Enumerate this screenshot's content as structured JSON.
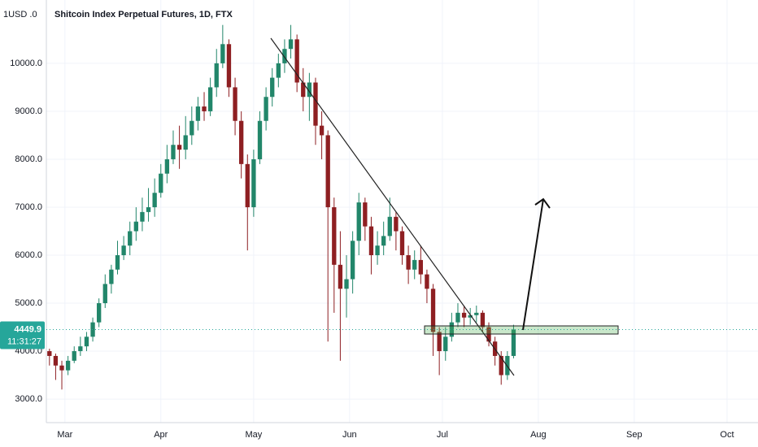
{
  "chart_data": {
    "type": "candlestick",
    "title": "Shitcoin Index Perpetual Futures, 1D, FTX",
    "currency_label": "1USD .0",
    "x": [
      0,
      2,
      4,
      6,
      8,
      10,
      12,
      14,
      16,
      18,
      20,
      22,
      24,
      26,
      28,
      30,
      32,
      34,
      36,
      38,
      40,
      42,
      44,
      46,
      48,
      50,
      52,
      54,
      56,
      58,
      60,
      62,
      64,
      66,
      68,
      70,
      72,
      74,
      76,
      78,
      80,
      82,
      84,
      86,
      88,
      90,
      92,
      94,
      96,
      98,
      100,
      102,
      104,
      106,
      108,
      110,
      112,
      114,
      116,
      118,
      120,
      122,
      124,
      126,
      128,
      130,
      132,
      134,
      136,
      138,
      140,
      142,
      144,
      146,
      148,
      150
    ],
    "open": [
      4000,
      3900,
      3700,
      3600,
      3800,
      4000,
      4100,
      4300,
      4600,
      5000,
      5400,
      5700,
      6000,
      6200,
      6500,
      6700,
      6900,
      7000,
      7300,
      7700,
      8000,
      8300,
      8200,
      8500,
      8800,
      9100,
      9000,
      9500,
      10000,
      10400,
      9500,
      8800,
      7900,
      7000,
      8000,
      8800,
      9300,
      9700,
      10000,
      10300,
      10500,
      9600,
      9300,
      9600,
      8700,
      8500,
      7000,
      5800,
      5300,
      5500,
      6300,
      7100,
      6600,
      6000,
      6200,
      6400,
      6800,
      6500,
      6000,
      5700,
      5900,
      5600,
      5300,
      4400,
      4000,
      4300,
      4600,
      4800,
      4700,
      4750,
      4800,
      4500,
      4200,
      3900,
      3500,
      3900
    ],
    "high": [
      4050,
      3950,
      3800,
      3900,
      4100,
      4300,
      4400,
      4700,
      5100,
      5600,
      5800,
      6300,
      6400,
      6700,
      7000,
      7200,
      7400,
      7600,
      7900,
      8300,
      8600,
      8700,
      8900,
      9100,
      9300,
      9400,
      9700,
      10300,
      10800,
      10500,
      9700,
      9000,
      8100,
      8200,
      9000,
      9500,
      9900,
      10200,
      10500,
      10800,
      10600,
      9900,
      9800,
      9700,
      9000,
      8600,
      7200,
      6500,
      6000,
      6500,
      7300,
      7200,
      6800,
      6500,
      6700,
      7200,
      6900,
      6600,
      6200,
      6100,
      6200,
      5700,
      5400,
      4500,
      4500,
      4800,
      5000,
      4950,
      4900,
      4950,
      4850,
      4600,
      4300,
      4000,
      4000,
      4550
    ],
    "low": [
      3700,
      3400,
      3200,
      3500,
      3750,
      3900,
      4000,
      4200,
      4500,
      4900,
      5200,
      5600,
      5900,
      6000,
      6300,
      6500,
      6700,
      6800,
      7200,
      7500,
      7900,
      7800,
      8000,
      8300,
      8600,
      8800,
      8900,
      9300,
      9900,
      9300,
      8500,
      7600,
      6100,
      6800,
      7900,
      8600,
      9100,
      9500,
      9800,
      10100,
      9400,
      9000,
      8800,
      8300,
      8000,
      4200,
      4800,
      3800,
      4700,
      5200,
      6000,
      6300,
      5600,
      5800,
      6000,
      6300,
      6100,
      5800,
      5400,
      5500,
      5400,
      5000,
      3900,
      3500,
      3800,
      4200,
      4500,
      4500,
      4550,
      4600,
      4400,
      4100,
      3700,
      3300,
      3400,
      3850
    ],
    "close": [
      3900,
      3700,
      3600,
      3800,
      4000,
      4100,
      4300,
      4600,
      5000,
      5400,
      5700,
      6000,
      6200,
      6500,
      6700,
      6900,
      7000,
      7300,
      7700,
      8000,
      8300,
      8200,
      8500,
      8800,
      9100,
      9000,
      9500,
      10000,
      10400,
      9500,
      8800,
      7900,
      7000,
      8000,
      8800,
      9300,
      9700,
      10000,
      10300,
      10500,
      9600,
      9300,
      9600,
      8700,
      8500,
      7000,
      5800,
      5300,
      5500,
      6300,
      7100,
      6600,
      6000,
      6200,
      6400,
      6800,
      6500,
      6000,
      5700,
      5900,
      5600,
      5300,
      4400,
      4000,
      4300,
      4600,
      4800,
      4700,
      4750,
      4800,
      4500,
      4200,
      3900,
      3500,
      3900,
      4450
    ],
    "up_color": "#22866a",
    "down_color": "#8e1f22",
    "last_price": 4449.9,
    "countdown": "11:31:27",
    "xlim": [
      -1,
      229
    ],
    "xticks": [
      {
        "value": 5,
        "label": "Mar"
      },
      {
        "value": 36,
        "label": "Apr"
      },
      {
        "value": 66,
        "label": "May"
      },
      {
        "value": 97,
        "label": "Jun"
      },
      {
        "value": 127,
        "label": "Jul"
      },
      {
        "value": 158,
        "label": "Aug"
      },
      {
        "value": 189,
        "label": "Sep"
      },
      {
        "value": 219,
        "label": "Oct"
      }
    ],
    "ylim": [
      2510,
      11320
    ],
    "yticks": [
      {
        "value": 3000,
        "label": "3000.0"
      },
      {
        "value": 4000,
        "label": "4000.0"
      },
      {
        "value": 5000,
        "label": "5000.0"
      },
      {
        "value": 6000,
        "label": "6000.0"
      },
      {
        "value": 7000,
        "label": "7000.0"
      },
      {
        "value": 8000,
        "label": "8000.0"
      },
      {
        "value": 9000,
        "label": "9000.0"
      },
      {
        "value": 10000,
        "label": "10000.0"
      }
    ],
    "grid": true
  }
}
